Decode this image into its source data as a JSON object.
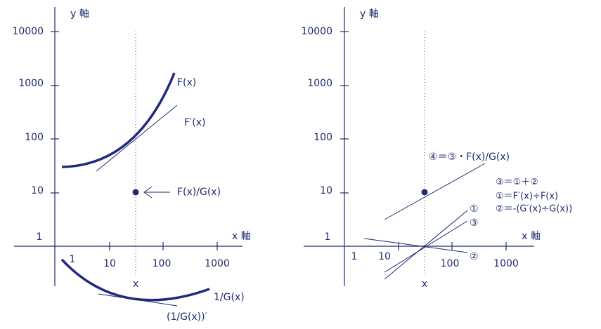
{
  "left": {
    "y_axis_label": "y 軸",
    "x_axis_label": "x 軸",
    "y_tick_labels": [
      "10000",
      "1000",
      "100",
      "10",
      "1"
    ],
    "x_tick_labels": [
      "1",
      "10",
      "100",
      "1000"
    ],
    "x_marker": "x",
    "labels": {
      "f": "F(x)",
      "f_prime": "F′(x)",
      "ratio": "F(x)/G(x)",
      "g_inverse": "1/G(x)",
      "g_inverse_prime": "(1/G(x))′"
    }
  },
  "right": {
    "y_axis_label": "y 軸",
    "x_axis_label": "x 軸",
    "y_tick_labels": [
      "10000",
      "1000",
      "100",
      "10",
      "1"
    ],
    "x_tick_labels": [
      "1",
      "10",
      "100",
      "1000"
    ],
    "x_marker": "x",
    "labels": {
      "four": "④＝③・F(x)/G(x)",
      "eq_three": "③＝①＋②",
      "eq_one": "①＝F′(x)÷F(x)",
      "eq_two": "②＝-(G′(x)÷G(x))",
      "one": "①",
      "three": "③",
      "two": "②"
    }
  }
}
